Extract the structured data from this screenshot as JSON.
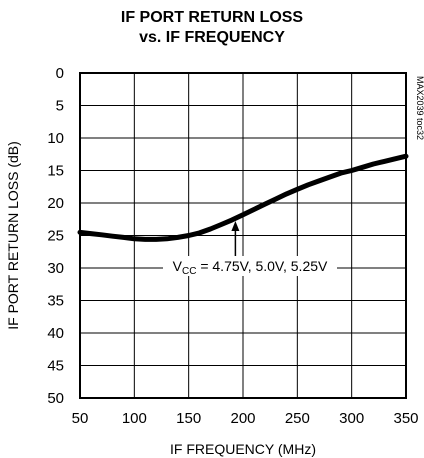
{
  "chart_data": {
    "type": "line",
    "title": "IF PORT RETURN LOSS",
    "subtitle": "vs. IF FREQUENCY",
    "xlabel": "IF FREQUENCY (MHz)",
    "ylabel": "IF PORT RETURN LOSS (dB)",
    "xlim": [
      50,
      350
    ],
    "ylim": [
      0,
      50
    ],
    "y_inverted": true,
    "x_ticks": [
      50,
      100,
      150,
      200,
      250,
      300,
      350
    ],
    "y_ticks": [
      0,
      5,
      10,
      15,
      20,
      25,
      30,
      35,
      40,
      45,
      50
    ],
    "grid": true,
    "side_note": "MAX2039 toc32",
    "annotation": {
      "prefix": "V",
      "subscript": "CC",
      "rest": " = 4.75V, 5.0V, 5.25V",
      "x": 193,
      "y": 22.3
    },
    "series": [
      {
        "x": [
          50,
          60,
          70,
          80,
          90,
          100,
          110,
          120,
          130,
          140,
          150,
          160,
          170,
          180,
          190,
          200,
          210,
          220,
          230,
          240,
          250,
          260,
          270,
          280,
          290,
          300,
          310,
          320,
          330,
          340,
          350
        ],
        "y": [
          24.5,
          24.7,
          24.9,
          25.1,
          25.3,
          25.5,
          25.6,
          25.6,
          25.5,
          25.3,
          25.0,
          24.6,
          24.0,
          23.3,
          22.6,
          21.8,
          21.0,
          20.2,
          19.4,
          18.6,
          17.9,
          17.2,
          16.6,
          16.0,
          15.4,
          15.0,
          14.5,
          14.0,
          13.6,
          13.2,
          12.8
        ]
      }
    ]
  }
}
